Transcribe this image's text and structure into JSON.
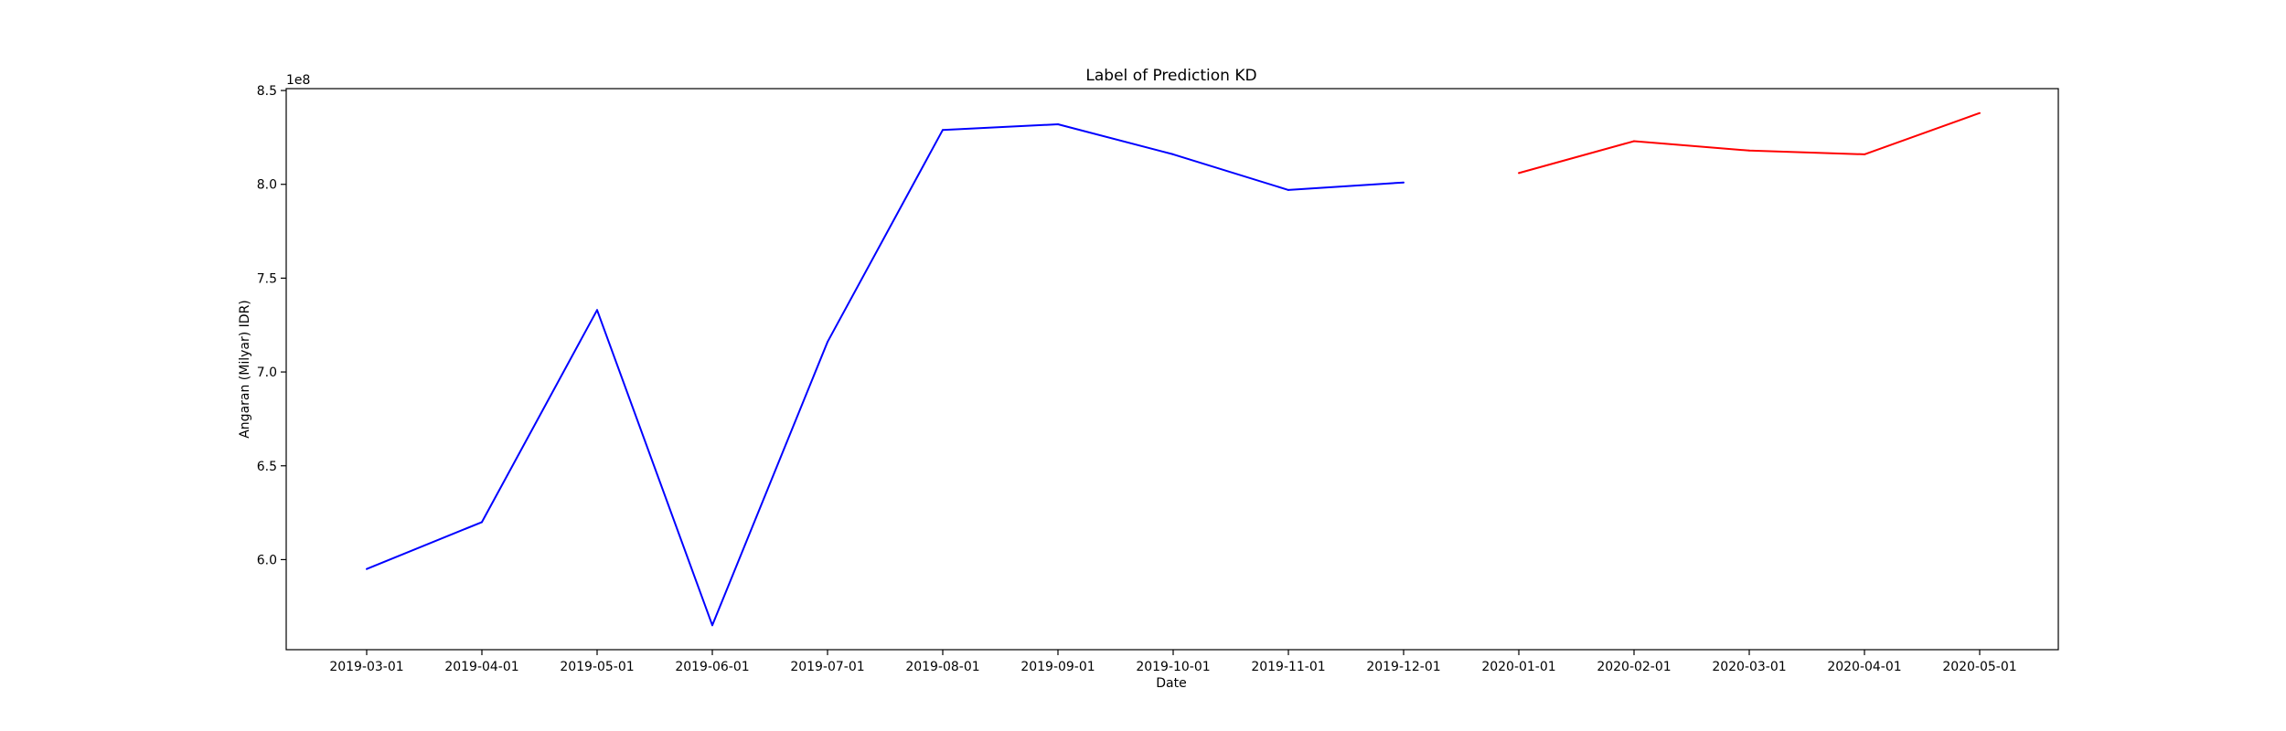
{
  "chart_data": {
    "type": "line",
    "title": "Label of Prediction KD",
    "xlabel": "Date",
    "ylabel": "Angaran (Milyar) IDR)",
    "y_offset_text": "1e8",
    "y_scale_factor": 100000000,
    "x_ticks": [
      "2019-03-01",
      "2019-04-01",
      "2019-05-01",
      "2019-06-01",
      "2019-07-01",
      "2019-08-01",
      "2019-09-01",
      "2019-10-01",
      "2019-11-01",
      "2019-12-01",
      "2020-01-01",
      "2020-02-01",
      "2020-03-01",
      "2020-04-01",
      "2020-05-01"
    ],
    "y_ticks": [
      6.0,
      6.5,
      7.0,
      7.5,
      8.0,
      8.5
    ],
    "ylim": [
      552000000,
      851000000
    ],
    "grid": false,
    "series": [
      {
        "color": "#0000ff",
        "x": [
          "2019-03-01",
          "2019-04-01",
          "2019-05-01",
          "2019-06-01",
          "2019-07-01",
          "2019-08-01",
          "2019-09-01",
          "2019-10-01",
          "2019-11-01",
          "2019-12-01"
        ],
        "values": [
          595000000,
          620000000,
          733000000,
          565000000,
          716000000,
          829000000,
          832000000,
          816000000,
          797000000,
          801000000
        ]
      },
      {
        "color": "#ff0000",
        "x": [
          "2020-01-01",
          "2020-02-01",
          "2020-03-01",
          "2020-04-01",
          "2020-05-01"
        ],
        "values": [
          806000000,
          823000000,
          818000000,
          816000000,
          838000000
        ]
      }
    ]
  }
}
